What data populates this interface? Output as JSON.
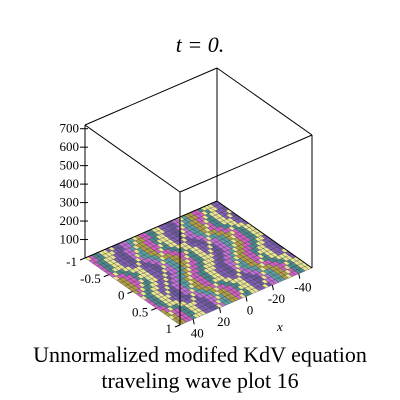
{
  "caption": {
    "line1": "Unnormalized modifed KdV equation",
    "line2": "traveling wave plot 16"
  },
  "chart_data": {
    "type": "surface3d",
    "title": "t = 0.",
    "xlabel": "x",
    "ylabel": "",
    "zlabel": "",
    "x_ticks": [
      {
        "v": 40,
        "label": "40"
      },
      {
        "v": 20,
        "label": "20"
      },
      {
        "v": 0,
        "label": "0"
      },
      {
        "v": -20,
        "label": "-20"
      },
      {
        "v": -40,
        "label": "-40"
      }
    ],
    "y_ticks": [
      {
        "v": -1,
        "label": "-1"
      },
      {
        "v": -0.5,
        "label": "-0.5"
      },
      {
        "v": 0,
        "label": "0"
      },
      {
        "v": 0.5,
        "label": "0.5"
      },
      {
        "v": 1,
        "label": "1"
      }
    ],
    "z_ticks": [
      {
        "v": 100,
        "label": "100"
      },
      {
        "v": 200,
        "label": "200"
      },
      {
        "v": 300,
        "label": "300"
      },
      {
        "v": 400,
        "label": "400"
      },
      {
        "v": 500,
        "label": "500"
      },
      {
        "v": 600,
        "label": "600"
      },
      {
        "v": 700,
        "label": "700"
      }
    ],
    "xlim": [
      -50,
      50
    ],
    "ylim": [
      -1,
      1
    ],
    "zlim": [
      0,
      720
    ],
    "surface": "nearly flat near z = 0, striped colour bands with a few bright streaks",
    "colors": [
      "#6a5a9a",
      "#c070d0",
      "#5aa0a0",
      "#b0a040",
      "#d060c0",
      "#4a8a8a",
      "#e8e890",
      "#8060b0"
    ]
  }
}
